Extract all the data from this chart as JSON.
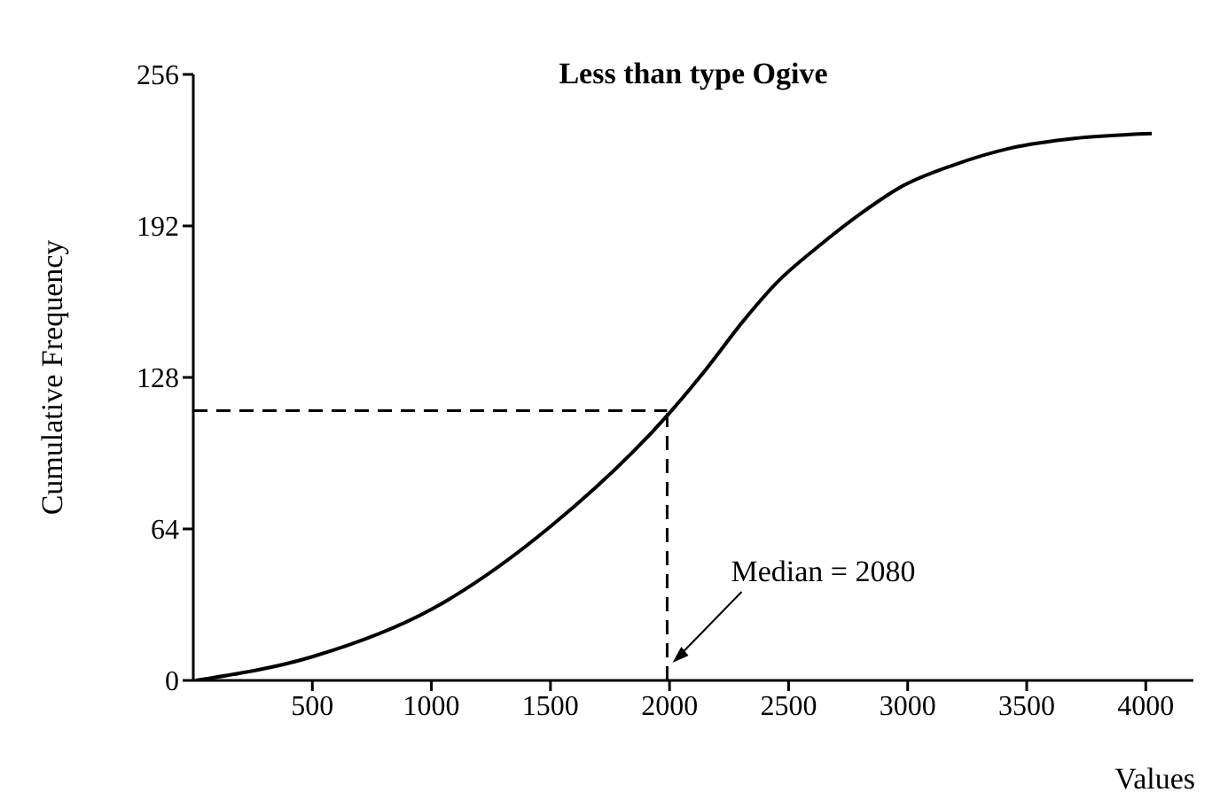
{
  "chart_data": {
    "type": "line",
    "title": "Less than type Ogive",
    "xlabel": "Values",
    "ylabel": "Cumulative Frequency",
    "xlim": [
      0,
      4200
    ],
    "xticks": [
      500,
      1000,
      1500,
      2000,
      2500,
      3000,
      3500,
      4000
    ],
    "ylim": [
      0,
      256
    ],
    "yticks": [
      0,
      64,
      128,
      192,
      256
    ],
    "series": [
      {
        "color": "#000000",
        "x": [
          10,
          500,
          1000,
          1500,
          2000,
          2150,
          2311,
          2450,
          2621,
          2800,
          2981,
          3200,
          3437,
          3700,
          4025
        ],
        "values": [
          0,
          10,
          30,
          65,
          113,
          131,
          152,
          168,
          183,
          197,
          209,
          218,
          225,
          229,
          231
        ]
      }
    ],
    "ref_lines": [
      {
        "axis": "y",
        "value": 114,
        "color": "#000000",
        "line_style": "dashed"
      },
      {
        "axis": "x",
        "value": 1990,
        "color": "#000000",
        "line_style": "dashed"
      }
    ],
    "annotations": [
      "Median = 2080"
    ],
    "grid": false,
    "marker": "none",
    "line_style": "solid"
  }
}
